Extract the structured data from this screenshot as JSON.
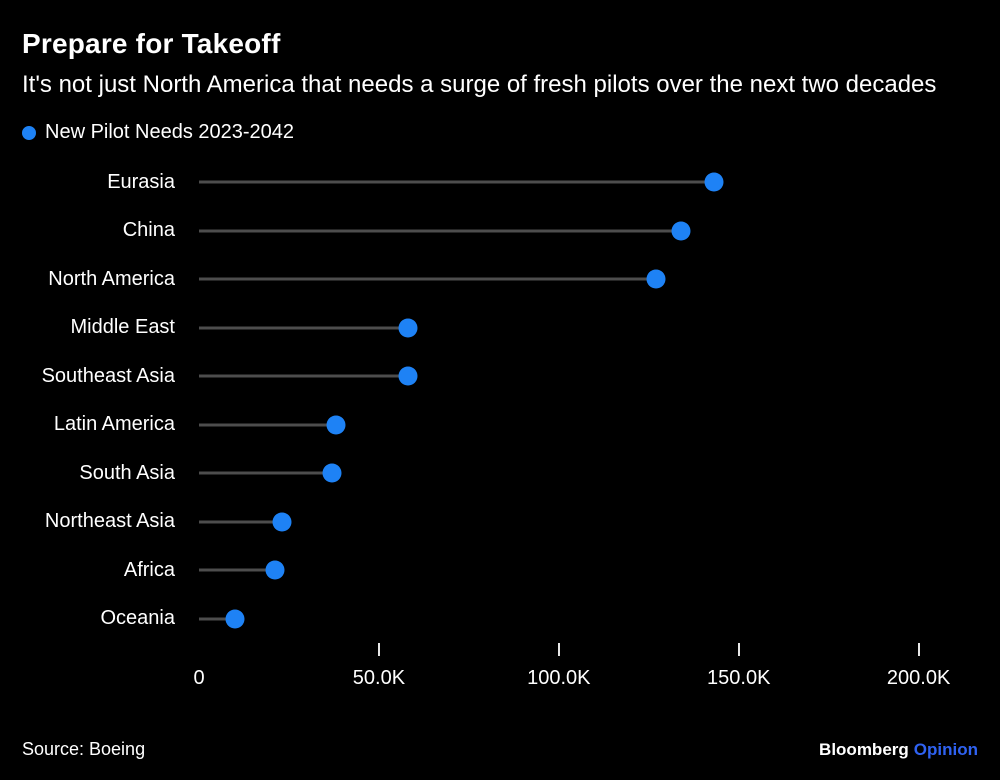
{
  "header": {
    "title": "Prepare for Takeoff",
    "subtitle": "It's not just North America that needs a surge of fresh pilots over the next two decades"
  },
  "legend": {
    "label": "New Pilot Needs 2023-2042"
  },
  "footer": {
    "source": "Source: Boeing",
    "brand": "Bloomberg",
    "brand_suffix": "Opinion"
  },
  "colors": {
    "background": "#000000",
    "text": "#ffffff",
    "accent_blue": "#1e82f5",
    "stem_gray": "#4d4d4d",
    "opinion_blue": "#2f62f1"
  },
  "icons": {
    "legend_marker": "circle-dot-icon"
  },
  "chart_data": {
    "type": "lollipop",
    "title": "Prepare for Takeoff",
    "subtitle": "It's not just North America that needs a surge of fresh pilots over the next two decades",
    "series_name": "New Pilot Needs 2023-2042",
    "categories": [
      "Eurasia",
      "China",
      "North America",
      "Middle East",
      "Southeast Asia",
      "Latin America",
      "South Asia",
      "Northeast Asia",
      "Africa",
      "Oceania"
    ],
    "values": [
      143000,
      134000,
      127000,
      58000,
      58000,
      38000,
      37000,
      23000,
      21000,
      10000
    ],
    "xlabel": "",
    "ylabel": "",
    "tick_values": [
      0,
      50000,
      100000,
      150000,
      200000
    ],
    "tick_labels": [
      "0",
      "50.0K",
      "100.0K",
      "150.0K",
      "200.0K"
    ],
    "xlim": [
      0,
      216500
    ],
    "axis_max": 216500,
    "grid": false,
    "legend_position": "top-left",
    "orientation": "horizontal"
  }
}
